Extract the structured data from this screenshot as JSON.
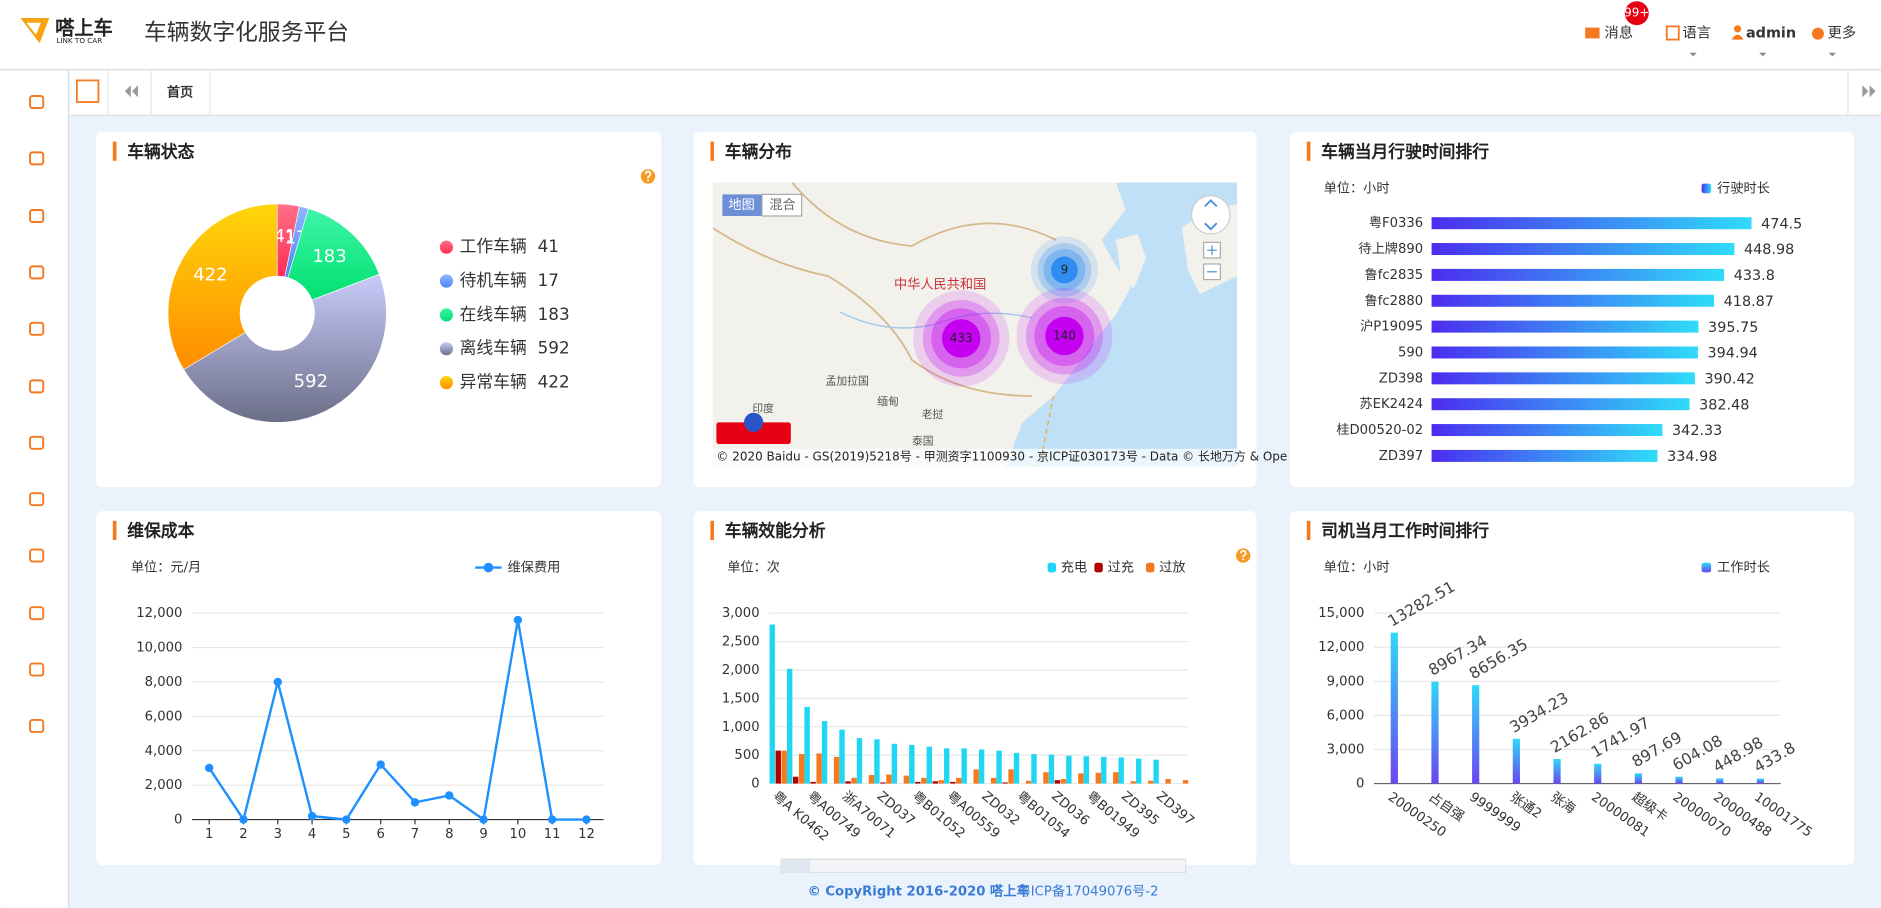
{
  "header": {
    "logo_text": "嗒上车",
    "logo_sub": "LINK TO CAR",
    "title": "车辆数字化服务平台",
    "menu": [
      {
        "label": "消息",
        "badge": "99+"
      },
      {
        "label": "语言"
      },
      {
        "label": "admin"
      },
      {
        "label": "更多"
      }
    ]
  },
  "tabs": [
    "首页"
  ],
  "map": {
    "title": "车辆分布",
    "buttons": [
      "地图",
      "混合"
    ],
    "labels": [
      "中华人民共和国",
      "孟加拉国",
      "缅甸",
      "印度",
      "老挝",
      "泰国"
    ],
    "clusters": [
      9,
      433,
      140
    ],
    "copyright": "© 2020 Baidu - GS(2019)5218号 - 甲测资字1100930 - 京ICP证030173号 - Data © 长地万方 & Ope"
  },
  "chart_data": [
    {
      "type": "pie",
      "title": "车辆状态",
      "categories": [
        "工作车辆",
        "待机车辆",
        "在线车辆",
        "离线车辆",
        "异常车辆"
      ],
      "values": [
        41,
        17,
        183,
        592,
        422
      ],
      "colors": [
        [
          "#ff2d55",
          "#ff7088"
        ],
        [
          "#4f86f7",
          "#8fb6ff"
        ],
        [
          "#00e070",
          "#3ff5a8"
        ],
        [
          "#6b6e87",
          "#c9ccfb"
        ],
        [
          "#ff8c00",
          "#ffd60a"
        ]
      ]
    },
    {
      "type": "bar",
      "horizontal": true,
      "title": "车辆当月行驶时间排行",
      "unit": "单位：小时",
      "categories": [
        "粤F0336",
        "待上牌890",
        "鲁fc2835",
        "鲁fc2880",
        "沪P19095",
        "590",
        "ZD398",
        "苏EK2424",
        "桂D00520-02",
        "ZD397"
      ],
      "series": [
        {
          "name": "行驶时长",
          "colors": [
            "#4b2df0",
            "#2fdcf8"
          ],
          "values": [
            474.5,
            448.98,
            433.8,
            418.87,
            395.75,
            394.94,
            390.42,
            382.48,
            342.33,
            334.98
          ]
        }
      ],
      "xlim": [
        0,
        500
      ]
    },
    {
      "type": "line",
      "title": "维保成本",
      "unit": "单位：元/月",
      "categories": [
        "1",
        "2",
        "3",
        "4",
        "5",
        "6",
        "7",
        "8",
        "9",
        "10",
        "11",
        "12"
      ],
      "series": [
        {
          "name": "维保费用",
          "color": "#1e90ff",
          "values": [
            3000,
            0,
            8000,
            200,
            0,
            3200,
            1000,
            1400,
            0,
            11600,
            0,
            0
          ]
        }
      ],
      "ylim": [
        0,
        12000
      ],
      "yticks": [
        0,
        {
          "value": 2000,
          "label": "2,000"
        },
        {
          "value": 4000,
          "label": "4,000"
        },
        {
          "value": 6000,
          "label": "6,000"
        },
        {
          "value": 8000,
          "label": "8,000"
        },
        {
          "value": 10000,
          "label": "10,000"
        },
        {
          "value": 12000,
          "label": "12,000"
        }
      ],
      "grid": true
    },
    {
      "type": "bar",
      "title": "车辆效能分析",
      "unit": "单位：次",
      "categories": [
        "粤A K0462",
        null,
        "粤A00749",
        null,
        "浙A70071",
        null,
        "ZD037",
        null,
        "粤B01052",
        null,
        "粤A00559",
        null,
        "ZD032",
        null,
        "粤B01054",
        null,
        "ZD036",
        null,
        "粤B01949",
        null,
        "ZD395",
        null,
        "ZD397",
        null
      ],
      "series": [
        {
          "name": "充电",
          "color": "#1fd7f5",
          "values": [
            2800,
            2020,
            1350,
            1100,
            950,
            800,
            780,
            700,
            680,
            650,
            620,
            620,
            600,
            580,
            540,
            520,
            510,
            490,
            480,
            470,
            460,
            440,
            420,
            0
          ]
        },
        {
          "name": "过充",
          "color": "#b00000",
          "values": [
            580,
            120,
            30,
            0,
            40,
            0,
            20,
            0,
            30,
            40,
            30,
            0,
            0,
            20,
            0,
            0,
            60,
            0,
            0,
            0,
            0,
            0,
            0,
            0
          ]
        },
        {
          "name": "过放",
          "color": "#f5791f",
          "values": [
            580,
            520,
            530,
            470,
            100,
            150,
            160,
            140,
            100,
            60,
            100,
            250,
            100,
            250,
            50,
            200,
            80,
            180,
            190,
            200,
            40,
            50,
            80,
            60
          ]
        }
      ],
      "ylim": [
        0,
        3000
      ],
      "yticks": [
        0,
        500,
        {
          "value": 1000,
          "label": "1,000"
        },
        {
          "value": 1500,
          "label": "1,500"
        },
        {
          "value": 2000,
          "label": "2,000"
        },
        {
          "value": 2500,
          "label": "2,500"
        },
        {
          "value": 3000,
          "label": "3,000"
        }
      ],
      "grid": true
    },
    {
      "type": "bar",
      "title": "司机当月工作时间排行",
      "unit": "单位：小时",
      "categories": [
        "20000250",
        "占自强",
        "9999999",
        "张通2",
        "张海",
        "20000081",
        "超级卡",
        "20000070",
        "20000488",
        "10001775"
      ],
      "series": [
        {
          "name": "工作时长",
          "colors": [
            "#6a45f2",
            "#2fd8f8"
          ],
          "values": [
            13282.51,
            8967.34,
            8656.35,
            3934.23,
            2162.86,
            1741.97,
            897.69,
            604.08,
            448.98,
            433.8
          ]
        }
      ],
      "ylim": [
        0,
        15000
      ],
      "yticks": [
        0,
        {
          "value": 3000,
          "label": "3,000"
        },
        {
          "value": 6000,
          "label": "6,000"
        },
        {
          "value": 9000,
          "label": "9,000"
        },
        {
          "value": 12000,
          "label": "12,000"
        },
        {
          "value": 15000,
          "label": "15,000"
        }
      ],
      "grid": true
    }
  ],
  "footer": {
    "copyright": "© CopyRight 2016-2020 嗒上车",
    "icp": "粤ICP备17049076号-2"
  }
}
